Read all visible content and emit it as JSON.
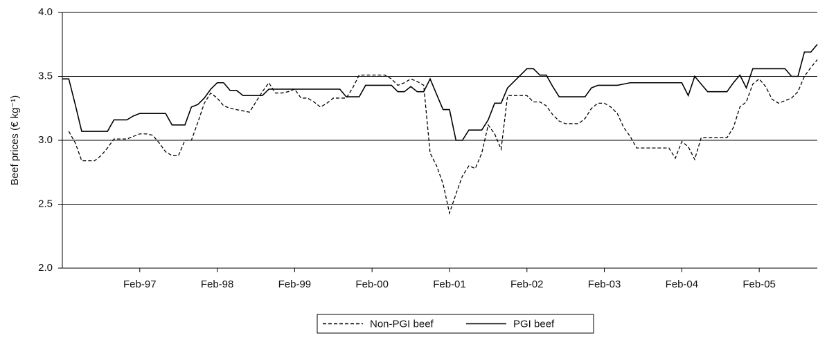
{
  "chart_data": {
    "type": "line",
    "y_label": "Beef prices (€ kg⁻¹)",
    "categories": [
      null,
      null,
      null,
      null,
      null,
      null,
      null,
      null,
      null,
      null,
      null,
      null,
      "Feb-97",
      null,
      null,
      null,
      null,
      null,
      null,
      null,
      null,
      null,
      null,
      null,
      "Feb-98",
      null,
      null,
      null,
      null,
      null,
      null,
      null,
      null,
      null,
      null,
      null,
      "Feb-99",
      null,
      null,
      null,
      null,
      null,
      null,
      null,
      null,
      null,
      null,
      null,
      "Feb-00",
      null,
      null,
      null,
      null,
      null,
      null,
      null,
      null,
      null,
      null,
      null,
      "Feb-01",
      null,
      null,
      null,
      null,
      null,
      null,
      null,
      null,
      null,
      null,
      null,
      "Feb-02",
      null,
      null,
      null,
      null,
      null,
      null,
      null,
      null,
      null,
      null,
      null,
      "Feb-03",
      null,
      null,
      null,
      null,
      null,
      null,
      null,
      null,
      null,
      null,
      null,
      "Feb-04",
      null,
      null,
      null,
      null,
      null,
      null,
      null,
      null,
      null,
      null,
      null,
      "Feb-05",
      null,
      null,
      null,
      null,
      null,
      null,
      null,
      null,
      null
    ],
    "series": [
      {
        "name": "Non-PGI beef",
        "color": "#000000",
        "style": "dashed",
        "values": [
          null,
          3.07,
          2.98,
          2.84,
          2.84,
          2.84,
          2.88,
          2.94,
          3.01,
          3.01,
          3.01,
          3.03,
          3.05,
          3.05,
          3.04,
          2.98,
          2.91,
          2.88,
          2.88,
          3.0,
          3.0,
          3.14,
          3.29,
          3.37,
          3.33,
          3.27,
          3.25,
          3.24,
          3.23,
          3.22,
          3.3,
          3.38,
          3.45,
          3.37,
          3.37,
          3.38,
          3.4,
          3.33,
          3.33,
          3.3,
          3.26,
          3.29,
          3.33,
          3.33,
          3.33,
          3.41,
          3.51,
          3.51,
          3.51,
          3.51,
          3.51,
          3.48,
          3.43,
          3.45,
          3.48,
          3.46,
          3.43,
          2.9,
          2.8,
          2.66,
          2.43,
          2.58,
          2.72,
          2.8,
          2.78,
          2.9,
          3.12,
          3.05,
          2.93,
          3.35,
          3.35,
          3.35,
          3.35,
          3.3,
          3.3,
          3.27,
          3.2,
          3.15,
          3.13,
          3.13,
          3.13,
          3.17,
          3.25,
          3.29,
          3.29,
          3.26,
          3.21,
          3.1,
          3.03,
          2.94,
          2.94,
          2.94,
          2.94,
          2.94,
          2.94,
          2.86,
          2.99,
          2.95,
          2.85,
          3.02,
          3.02,
          3.02,
          3.02,
          3.02,
          3.1,
          3.26,
          3.3,
          3.44,
          3.48,
          3.42,
          3.32,
          3.29,
          3.31,
          3.33,
          3.38,
          3.5,
          3.57,
          3.63
        ]
      },
      {
        "name": "PGI beef",
        "color": "#000000",
        "style": "solid",
        "values": [
          3.48,
          3.48,
          3.28,
          3.07,
          3.07,
          3.07,
          3.07,
          3.07,
          3.16,
          3.16,
          3.16,
          3.19,
          3.21,
          3.21,
          3.21,
          3.21,
          3.21,
          3.12,
          3.12,
          3.12,
          3.26,
          3.28,
          3.33,
          3.4,
          3.45,
          3.45,
          3.39,
          3.39,
          3.35,
          3.35,
          3.35,
          3.35,
          3.4,
          3.4,
          3.4,
          3.4,
          3.4,
          3.4,
          3.4,
          3.4,
          3.4,
          3.4,
          3.4,
          3.4,
          3.34,
          3.34,
          3.34,
          3.43,
          3.43,
          3.43,
          3.43,
          3.43,
          3.38,
          3.38,
          3.42,
          3.38,
          3.38,
          3.48,
          3.36,
          3.24,
          3.24,
          3.0,
          3.0,
          3.08,
          3.08,
          3.08,
          3.16,
          3.29,
          3.29,
          3.41,
          3.46,
          3.51,
          3.56,
          3.56,
          3.51,
          3.51,
          3.42,
          3.34,
          3.34,
          3.34,
          3.34,
          3.34,
          3.41,
          3.43,
          3.43,
          3.43,
          3.43,
          3.44,
          3.45,
          3.45,
          3.45,
          3.45,
          3.45,
          3.45,
          3.45,
          3.45,
          3.45,
          3.35,
          3.5,
          3.44,
          3.38,
          3.38,
          3.38,
          3.38,
          3.45,
          3.51,
          3.41,
          3.56,
          3.56,
          3.56,
          3.56,
          3.56,
          3.56,
          3.5,
          3.5,
          3.69,
          3.69,
          3.75
        ]
      }
    ],
    "ylim": [
      2.0,
      4.0
    ],
    "yticks": [
      {
        "value": 2,
        "label": "2.0"
      },
      2.5,
      {
        "value": 3,
        "label": "3.0"
      },
      3.5,
      {
        "value": 4,
        "label": "4.0"
      }
    ],
    "grid": true,
    "legend": "bottom"
  }
}
